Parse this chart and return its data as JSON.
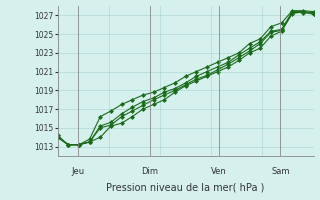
{
  "title": "",
  "xlabel": "Pression niveau de la mer( hPa )",
  "ylabel": "",
  "bg_color": "#d6f0ee",
  "grid_color": "#b0d8d4",
  "line_color": "#1a6b1a",
  "marker_color": "#1a6b1a",
  "ylim": [
    1012,
    1028
  ],
  "yticks": [
    1013,
    1015,
    1017,
    1019,
    1021,
    1023,
    1025,
    1027
  ],
  "day_labels": [
    "Jeu",
    "Dim",
    "Ven",
    "Sam"
  ],
  "day_positions": [
    0.08,
    0.36,
    0.63,
    0.87
  ],
  "series": [
    [
      1014.0,
      1013.2,
      1013.2,
      1013.5,
      1014.0,
      1015.2,
      1015.5,
      1016.2,
      1017.0,
      1017.5,
      1018.0,
      1018.8,
      1019.5,
      1020.0,
      1020.5,
      1021.0,
      1021.5,
      1022.2,
      1023.0,
      1023.5,
      1024.8,
      1025.3,
      1027.2,
      1027.4,
      1027.1
    ],
    [
      1014.0,
      1013.2,
      1013.2,
      1013.5,
      1015.0,
      1015.3,
      1016.2,
      1016.8,
      1017.4,
      1018.0,
      1018.5,
      1019.0,
      1019.6,
      1020.2,
      1020.6,
      1021.2,
      1021.8,
      1022.5,
      1023.2,
      1024.0,
      1025.2,
      1025.4,
      1027.3,
      1027.3,
      1027.2
    ],
    [
      1014.0,
      1013.2,
      1013.2,
      1013.5,
      1015.2,
      1015.6,
      1016.5,
      1017.2,
      1017.8,
      1018.2,
      1018.8,
      1019.2,
      1019.8,
      1020.5,
      1021.0,
      1021.5,
      1022.0,
      1022.8,
      1023.5,
      1024.2,
      1025.3,
      1025.5,
      1027.4,
      1027.4,
      1027.3
    ],
    [
      1014.2,
      1013.2,
      1013.2,
      1013.8,
      1016.2,
      1016.8,
      1017.5,
      1018.0,
      1018.5,
      1018.8,
      1019.3,
      1019.8,
      1020.5,
      1021.0,
      1021.5,
      1022.0,
      1022.5,
      1023.0,
      1024.0,
      1024.5,
      1025.8,
      1026.2,
      1027.5,
      1027.5,
      1027.4
    ]
  ]
}
